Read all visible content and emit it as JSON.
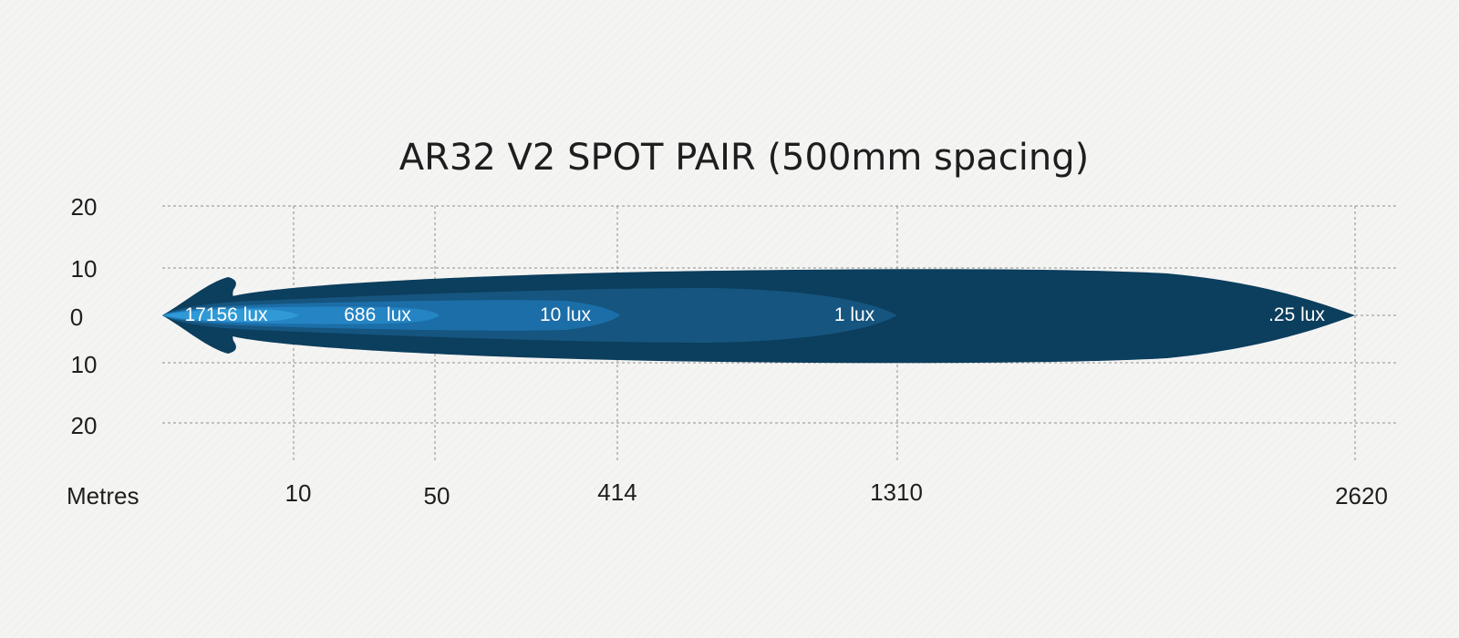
{
  "chart_data": {
    "type": "area",
    "title": "AR32 V2 SPOT PAIR (500mm spacing)",
    "xlabel": "Metres",
    "x_ticks": [
      "10",
      "50",
      "414",
      "1310",
      "2620"
    ],
    "y_ticks": [
      "20",
      "10",
      "0",
      "10",
      "20"
    ],
    "grid": true,
    "beam_zones": [
      {
        "label": "17156 lux",
        "reach_m": 10,
        "color": "#2f9ad6"
      },
      {
        "label": "686  lux",
        "reach_m": 50,
        "color": "#2584c4"
      },
      {
        "label": "10 lux",
        "reach_m": 414,
        "color": "#1c6ea8"
      },
      {
        "label": "1 lux",
        "reach_m": 1310,
        "color": "#15557f"
      },
      {
        "label": ".25 lux",
        "reach_m": 2620,
        "color": "#0c3e5d"
      }
    ]
  }
}
